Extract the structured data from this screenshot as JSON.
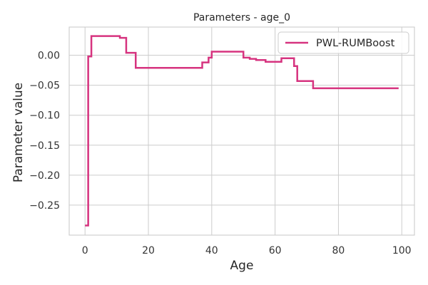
{
  "chart_data": {
    "type": "line",
    "step": "post",
    "title": "Parameters - age_0",
    "xlabel": "Age",
    "ylabel": "Parameter value",
    "xlim": [
      -5,
      104
    ],
    "ylim": [
      -0.3,
      0.047
    ],
    "xticks": [
      0,
      20,
      40,
      60,
      80,
      100
    ],
    "yticks": [
      0.0,
      -0.05,
      -0.1,
      -0.15,
      -0.2,
      -0.25
    ],
    "xtick_labels": [
      "0",
      "20",
      "40",
      "60",
      "80",
      "100"
    ],
    "ytick_labels": [
      "0.00",
      "−0.05",
      "−0.10",
      "−0.15",
      "−0.20",
      "−0.25"
    ],
    "grid": true,
    "legend": "upper right",
    "series": [
      {
        "name": "PWL-RUMBoost",
        "color": "#d6337f",
        "x": [
          0,
          1,
          2,
          11,
          13,
          15,
          16,
          37,
          39,
          40,
          50,
          52,
          54,
          57,
          62,
          66,
          67,
          72,
          99
        ],
        "y": [
          -0.284,
          -0.002,
          0.032,
          0.029,
          0.004,
          0.004,
          -0.021,
          -0.012,
          -0.004,
          0.006,
          -0.004,
          -0.006,
          -0.008,
          -0.011,
          -0.005,
          -0.018,
          -0.043,
          -0.055,
          -0.055
        ]
      }
    ]
  }
}
